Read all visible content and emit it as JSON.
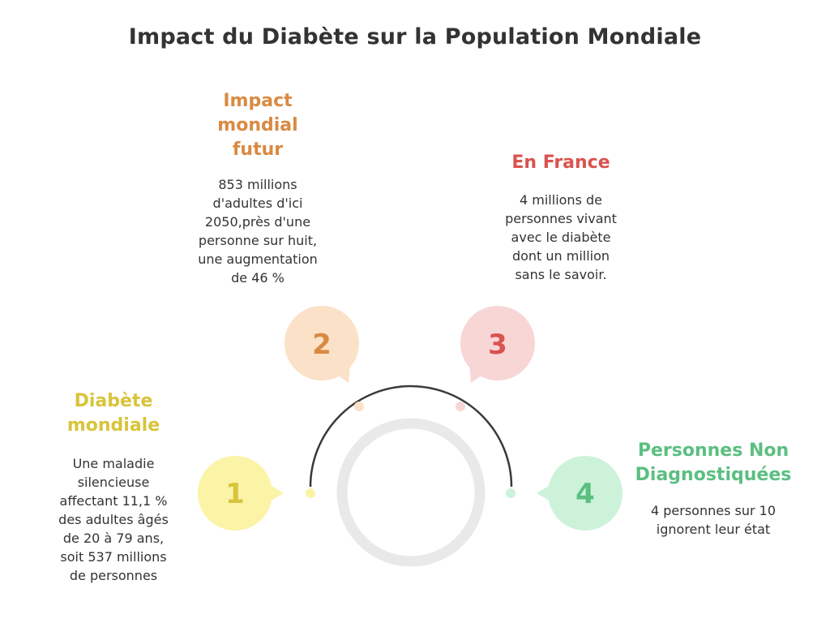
{
  "title": "Impact du Diabète sur la Population Mondiale",
  "colors": {
    "step1": "#d8c43a",
    "step1_bg": "#fbf3a6",
    "step2": "#d98a43",
    "step2_bg": "#fbe1c8",
    "step3": "#d9534f",
    "step3_bg": "#f8d6d6",
    "step4": "#5bbf80",
    "step4_bg": "#cdf2da",
    "arc": "#3a3a3a",
    "ring": "#e9e9e9"
  },
  "steps": [
    {
      "number": "1",
      "heading_lines": [
        "Diabète",
        "mondiale"
      ],
      "desc_lines": [
        "Une maladie",
        "silencieuse",
        "affectant 11,1 %",
        "des adultes âgés",
        "de 20 à 79 ans,",
        "soit 537 millions",
        "de personnes"
      ]
    },
    {
      "number": "2",
      "heading_lines": [
        "Impact",
        "mondial",
        "futur"
      ],
      "desc_lines": [
        "853 millions",
        "d'adultes d'ici",
        "2050,près d'une",
        "personne sur huit,",
        "une augmentation",
        "de 46 %"
      ]
    },
    {
      "number": "3",
      "heading_lines": [
        "En France"
      ],
      "desc_lines": [
        "4 millions de",
        "personnes vivant",
        "avec le diabète",
        "dont un million",
        "sans le savoir."
      ]
    },
    {
      "number": "4",
      "heading_lines": [
        "Personnes Non",
        "Diagnostiquées"
      ],
      "desc_lines": [
        "4 personnes sur 10",
        "ignorent leur état"
      ]
    }
  ]
}
